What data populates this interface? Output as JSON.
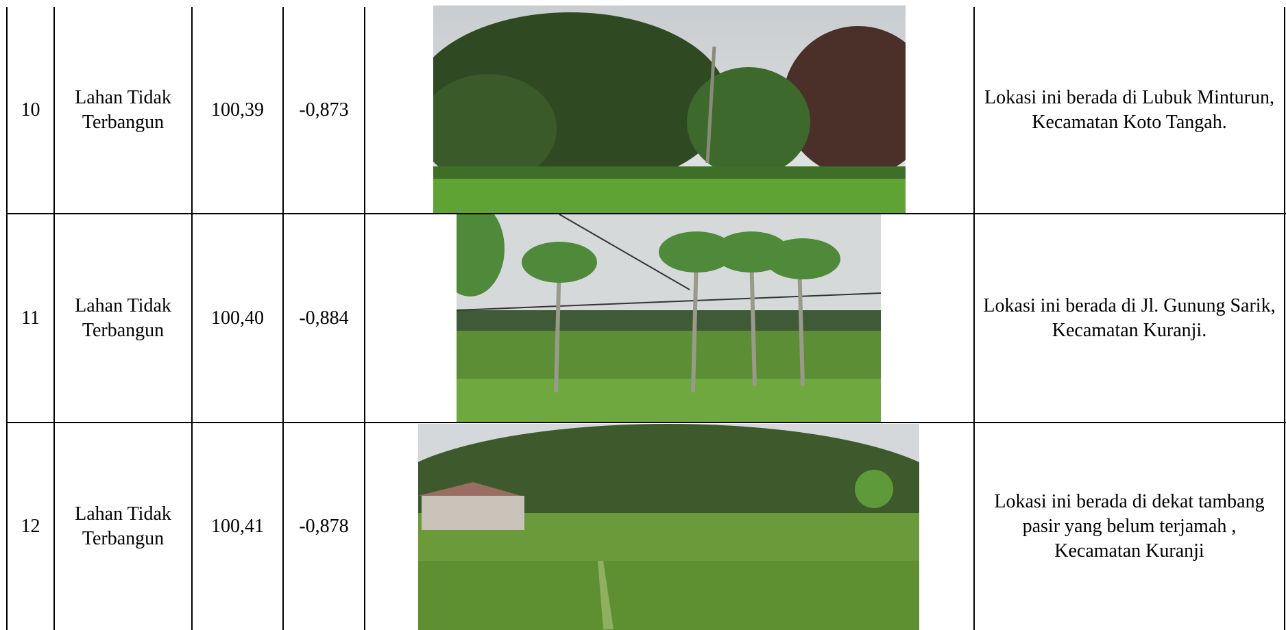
{
  "table": {
    "rows": [
      [
        "10",
        "Lahan Tidak Terbangun",
        "100,39",
        "-0,873",
        "Lokasi ini berada di Lubuk Minturun, Kecamatan Koto Tangah."
      ],
      [
        "11",
        "Lahan Tidak Terbangun",
        "100,40",
        "-0,884",
        "Lokasi ini berada di Jl. Gunung Sarik, Kecamatan Kuranji."
      ],
      [
        "12",
        "Lahan Tidak Terbangun",
        "100,41",
        "-0,878",
        "Lokasi ini berada di dekat tambang pasir yang belum terjamah , Kecamatan Kuranji"
      ]
    ]
  }
}
